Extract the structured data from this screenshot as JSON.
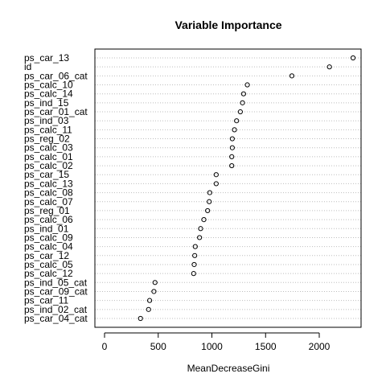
{
  "chart_data": {
    "type": "dotchart",
    "title": "Variable Importance",
    "xlabel": "MeanDecreaseGini",
    "ylabel": "",
    "xlim": [
      0,
      2400
    ],
    "x_ticks": [
      0,
      500,
      1000,
      1500,
      2000
    ],
    "grid": "dotted horizontal lines per variable",
    "colors": {
      "point": "#000000",
      "grid": "#bebebe",
      "axis": "#000000"
    },
    "variables": [
      {
        "name": "ps_car_13",
        "value": 2315
      },
      {
        "name": "id",
        "value": 2095
      },
      {
        "name": "ps_car_06_cat",
        "value": 1745
      },
      {
        "name": "ps_calc_10",
        "value": 1330
      },
      {
        "name": "ps_calc_14",
        "value": 1295
      },
      {
        "name": "ps_ind_15",
        "value": 1285
      },
      {
        "name": "ps_car_01_cat",
        "value": 1265
      },
      {
        "name": "ps_ind_03",
        "value": 1230
      },
      {
        "name": "ps_calc_11",
        "value": 1210
      },
      {
        "name": "ps_reg_02",
        "value": 1190
      },
      {
        "name": "ps_calc_03",
        "value": 1190
      },
      {
        "name": "ps_calc_01",
        "value": 1185
      },
      {
        "name": "ps_calc_02",
        "value": 1185
      },
      {
        "name": "ps_car_15",
        "value": 1040
      },
      {
        "name": "ps_calc_13",
        "value": 1040
      },
      {
        "name": "ps_calc_08",
        "value": 980
      },
      {
        "name": "ps_calc_07",
        "value": 975
      },
      {
        "name": "ps_reg_01",
        "value": 960
      },
      {
        "name": "ps_calc_06",
        "value": 925
      },
      {
        "name": "ps_ind_01",
        "value": 895
      },
      {
        "name": "ps_calc_09",
        "value": 885
      },
      {
        "name": "ps_calc_04",
        "value": 845
      },
      {
        "name": "ps_car_12",
        "value": 840
      },
      {
        "name": "ps_calc_05",
        "value": 835
      },
      {
        "name": "ps_calc_12",
        "value": 830
      },
      {
        "name": "ps_ind_05_cat",
        "value": 470
      },
      {
        "name": "ps_car_09_cat",
        "value": 460
      },
      {
        "name": "ps_car_11",
        "value": 420
      },
      {
        "name": "ps_ind_02_cat",
        "value": 410
      },
      {
        "name": "ps_car_04_cat",
        "value": 335
      }
    ]
  }
}
